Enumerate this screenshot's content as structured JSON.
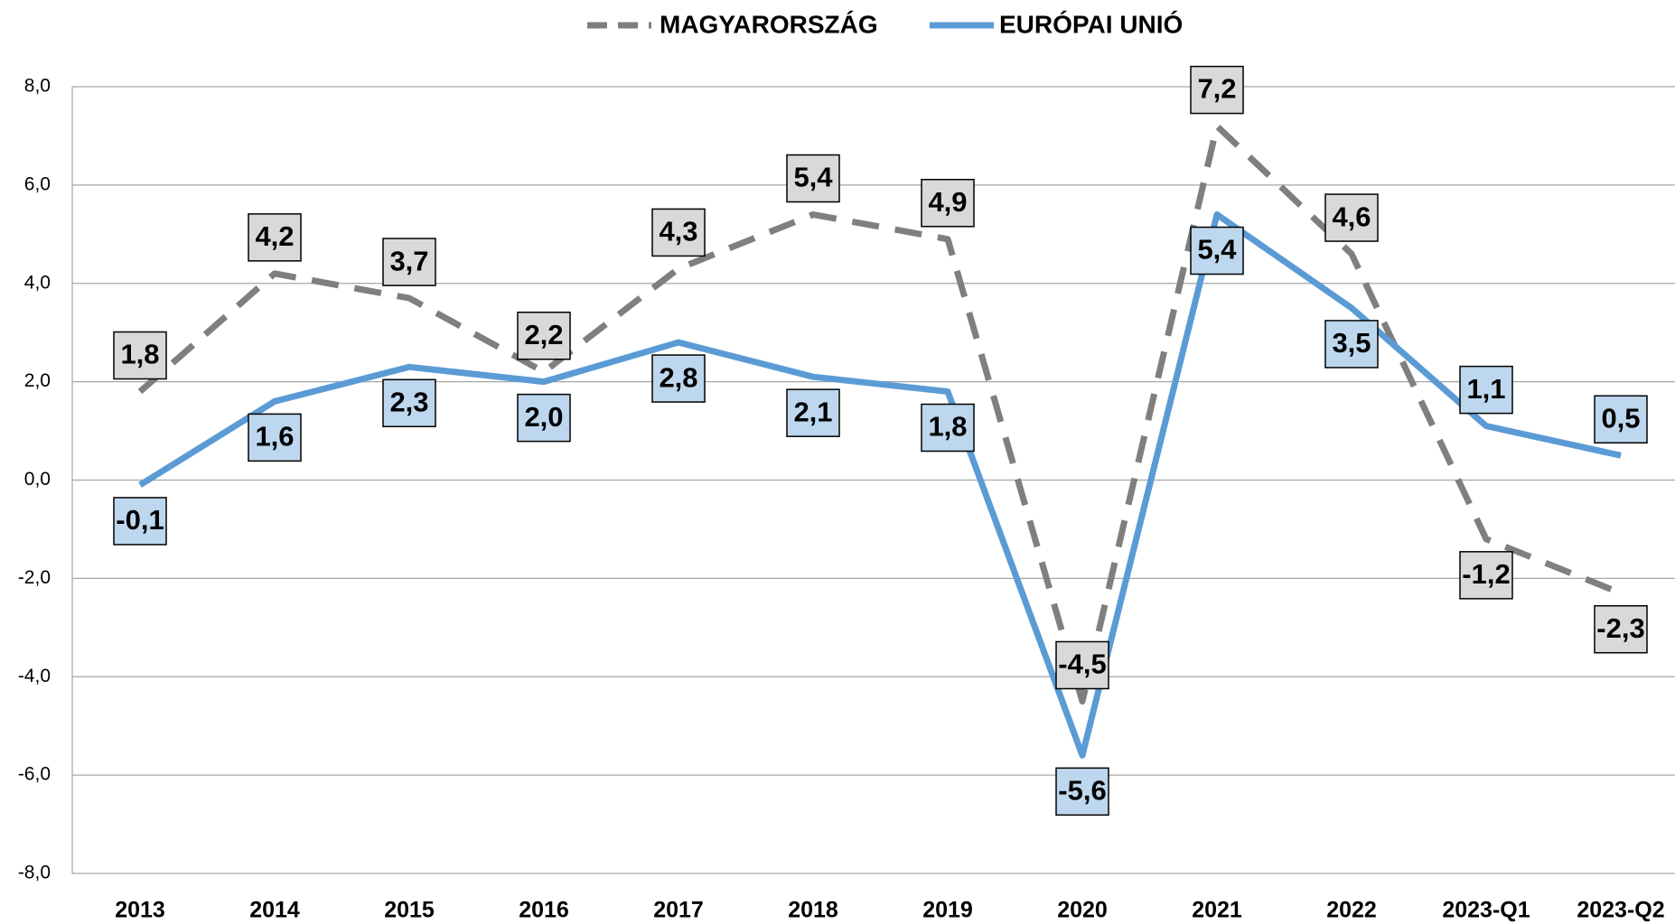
{
  "chart_data": {
    "type": "line",
    "categories": [
      "2013",
      "2014",
      "2015",
      "2016",
      "2017",
      "2018",
      "2019",
      "2020",
      "2021",
      "2022",
      "2023-Q1",
      "2023-Q2"
    ],
    "series": [
      {
        "name": "MAGYARORSZÁG",
        "color": "#7f7f7f",
        "dash": true,
        "values": [
          1.8,
          4.2,
          3.7,
          2.2,
          4.3,
          5.4,
          4.9,
          -4.5,
          7.2,
          4.6,
          -1.2,
          -2.3
        ],
        "value_labels": [
          "1,8",
          "4,2",
          "3,7",
          "2,2",
          "4,3",
          "5,4",
          "4,9",
          "-4,5",
          "7,2",
          "4,6",
          "-1,2",
          "-2,3"
        ],
        "label_fill": "#d9d9d9"
      },
      {
        "name": "EURÓPAI UNIÓ",
        "color": "#5b9bd5",
        "dash": false,
        "values": [
          -0.1,
          1.6,
          2.3,
          2.0,
          2.8,
          2.1,
          1.8,
          -5.6,
          5.4,
          3.5,
          1.1,
          0.5
        ],
        "value_labels": [
          "-0,1",
          "1,6",
          "2,3",
          "2,0",
          "2,8",
          "2,1",
          "1,8",
          "-5,6",
          "5,4",
          "3,5",
          "1,1",
          "0,5"
        ],
        "label_fill": "#bdd7ee"
      }
    ],
    "ylim": [
      -8,
      8
    ],
    "yticks": [
      {
        "value": -8,
        "label": "-8,0"
      },
      {
        "value": -6,
        "label": "-6,0"
      },
      {
        "value": -4,
        "label": "-4,0"
      },
      {
        "value": -2,
        "label": "-2,0"
      },
      {
        "value": 0,
        "label": "0,0"
      },
      {
        "value": 2,
        "label": "2,0"
      },
      {
        "value": 4,
        "label": "4,0"
      },
      {
        "value": 6,
        "label": "6,0"
      },
      {
        "value": 8,
        "label": "8,0"
      }
    ],
    "grid": true,
    "legend": "top"
  }
}
